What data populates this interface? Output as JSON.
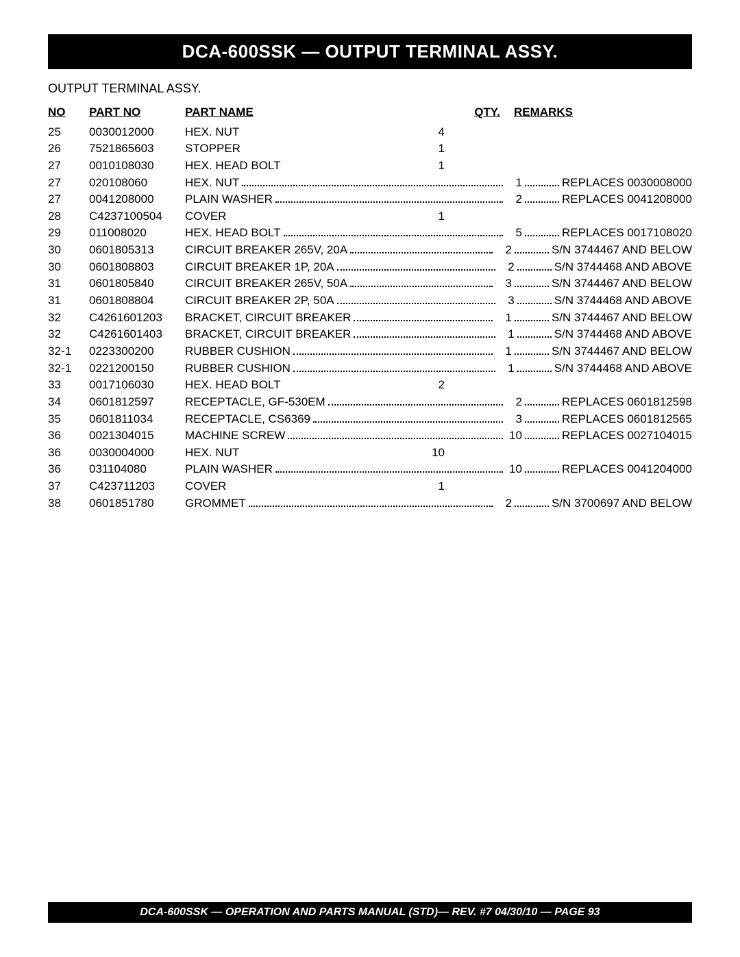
{
  "header": "DCA-600SSK — OUTPUT TERMINAL ASSY.",
  "subtitle": "OUTPUT TERMINAL ASSY.",
  "columns": {
    "no": "NO",
    "partno": "PART NO",
    "partname": "PART NAME",
    "qty": "QTY.",
    "remarks": "REMARKS"
  },
  "rows": [
    {
      "no": "25",
      "partno": "0030012000",
      "name": "HEX. NUT",
      "qty": "4",
      "remarks": "",
      "leader_name": false,
      "leader_rem": false
    },
    {
      "no": "26",
      "partno": "7521865603",
      "name": "STOPPER",
      "qty": "1",
      "remarks": "",
      "leader_name": false,
      "leader_rem": false
    },
    {
      "no": "27",
      "partno": "0010108030",
      "name": "HEX. HEAD BOLT",
      "qty": "1",
      "remarks": "",
      "leader_name": false,
      "leader_rem": false
    },
    {
      "no": "27",
      "partno": "020108060",
      "name": "HEX. NUT",
      "qty": "1",
      "remarks": "REPLACES 0030008000",
      "leader_name": true,
      "leader_rem": true
    },
    {
      "no": "27",
      "partno": "0041208000",
      "name": "PLAIN WASHER",
      "qty": "2",
      "remarks": "REPLACES 0041208000",
      "leader_name": true,
      "leader_rem": true
    },
    {
      "no": "28",
      "partno": "C4237100504",
      "name": "COVER",
      "qty": "1",
      "remarks": "",
      "leader_name": false,
      "leader_rem": false
    },
    {
      "no": "29",
      "partno": "011008020",
      "name": "HEX. HEAD BOLT",
      "qty": "5",
      "remarks": "REPLACES 0017108020",
      "leader_name": true,
      "leader_rem": true
    },
    {
      "no": "30",
      "partno": "0601805313",
      "name": "CIRCUIT BREAKER 265V, 20A",
      "qty": "2",
      "remarks": "S/N 3744467 AND BELOW",
      "leader_name": true,
      "leader_rem": true
    },
    {
      "no": "30",
      "partno": "0601808803",
      "name": "CIRCUIT BREAKER 1P, 20A",
      "qty": "2",
      "remarks": "S/N 3744468 AND ABOVE",
      "leader_name": true,
      "leader_rem": true
    },
    {
      "no": "31",
      "partno": "0601805840",
      "name": "CIRCUIT BREAKER 265V, 50A",
      "qty": "3",
      "remarks": "S/N 3744467 AND BELOW",
      "leader_name": true,
      "leader_rem": true
    },
    {
      "no": "31",
      "partno": "0601808804",
      "name": "CIRCUIT BREAKER 2P, 50A",
      "qty": "3",
      "remarks": "S/N 3744468 AND ABOVE",
      "leader_name": true,
      "leader_rem": true
    },
    {
      "no": "32",
      "partno": "C4261601203",
      "name": "BRACKET, CIRCUIT BREAKER",
      "qty": "1",
      "remarks": "S/N 3744467 AND BELOW",
      "leader_name": true,
      "leader_rem": true
    },
    {
      "no": "32",
      "partno": "C4261601403",
      "name": "BRACKET, CIRCUIT BREAKER",
      "qty": "1",
      "remarks": "S/N 3744468 AND ABOVE",
      "leader_name": true,
      "leader_rem": true
    },
    {
      "no": "32-1",
      "partno": "0223300200",
      "name": "RUBBER CUSHION",
      "qty": "1",
      "remarks": "S/N 3744467 AND BELOW",
      "leader_name": true,
      "leader_rem": true
    },
    {
      "no": "32-1",
      "partno": "0221200150",
      "name": "RUBBER CUSHION",
      "qty": "1",
      "remarks": "S/N 3744468 AND ABOVE",
      "leader_name": true,
      "leader_rem": true
    },
    {
      "no": "33",
      "partno": "0017106030",
      "name": "HEX. HEAD BOLT",
      "qty": "2",
      "remarks": "",
      "leader_name": false,
      "leader_rem": false
    },
    {
      "no": "34",
      "partno": "0601812597",
      "name": "RECEPTACLE, GF-530EM",
      "qty": "2",
      "remarks": "REPLACES 0601812598",
      "leader_name": true,
      "leader_rem": true
    },
    {
      "no": "35",
      "partno": "0601811034",
      "name": "RECEPTACLE, CS6369",
      "qty": "3",
      "remarks": "REPLACES 0601812565",
      "leader_name": true,
      "leader_rem": true
    },
    {
      "no": "36",
      "partno": "0021304015",
      "name": "MACHINE SCREW",
      "qty": "10",
      "remarks": "REPLACES 0027104015",
      "leader_name": true,
      "leader_rem": true
    },
    {
      "no": "36",
      "partno": "0030004000",
      "name": "HEX. NUT",
      "qty": "10",
      "remarks": "",
      "leader_name": false,
      "leader_rem": false
    },
    {
      "no": "36",
      "partno": "031104080",
      "name": "PLAIN WASHER",
      "qty": "10",
      "remarks": "REPLACES 0041204000",
      "leader_name": true,
      "leader_rem": true
    },
    {
      "no": "37",
      "partno": "C423711203",
      "name": "COVER",
      "qty": "1",
      "remarks": "",
      "leader_name": false,
      "leader_rem": false
    },
    {
      "no": "38",
      "partno": "0601851780",
      "name": "GROMMET",
      "qty": "2",
      "remarks": "S/N 3700697 AND BELOW",
      "leader_name": true,
      "leader_rem": true
    }
  ],
  "footer": "DCA-600SSK — OPERATION AND PARTS MANUAL (STD)— REV. #7  04/30/10 — PAGE 93"
}
